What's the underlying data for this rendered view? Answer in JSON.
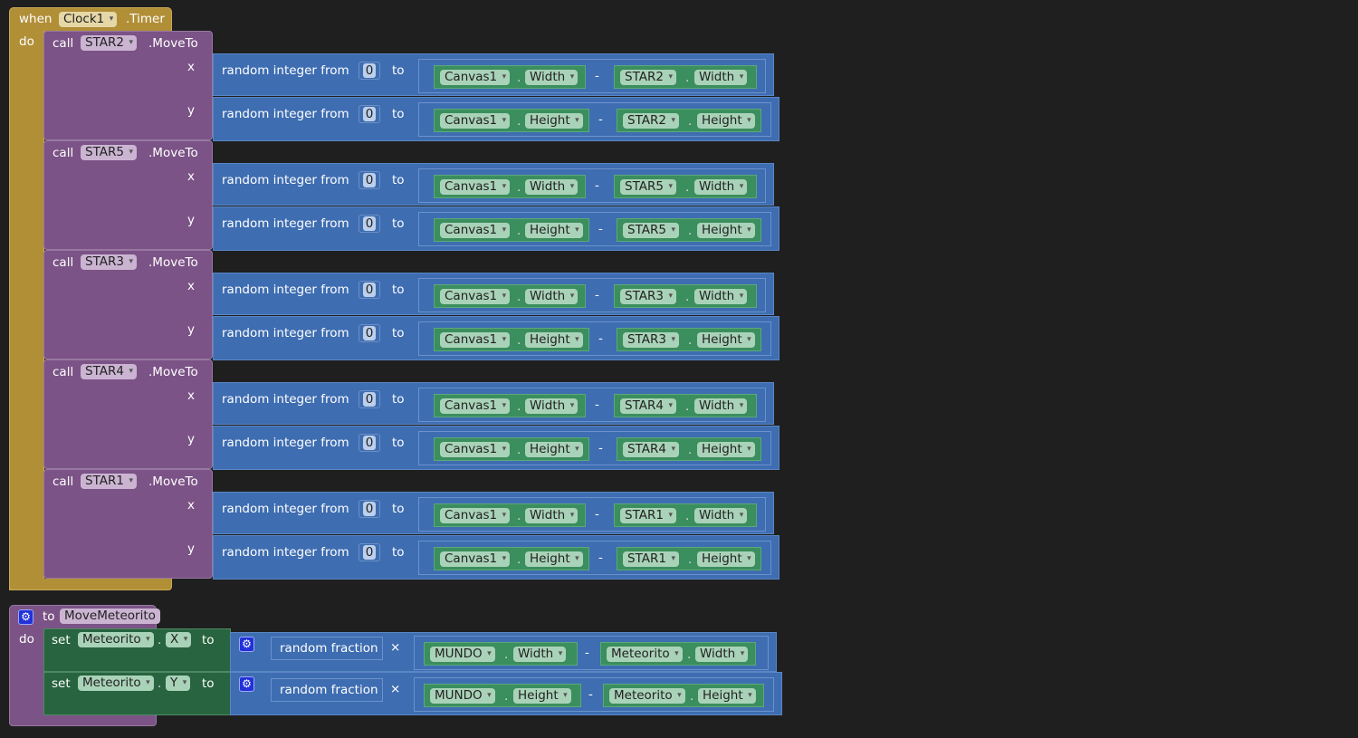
{
  "event": {
    "when": "when",
    "component": "Clock1",
    "event": ".Timer",
    "do": "do"
  },
  "calls": [
    {
      "call": "call",
      "star": "STAR2",
      "method": ".MoveTo"
    },
    {
      "call": "call",
      "star": "STAR5",
      "method": ".MoveTo"
    },
    {
      "call": "call",
      "star": "STAR3",
      "method": ".MoveTo"
    },
    {
      "call": "call",
      "star": "STAR4",
      "method": ".MoveTo"
    },
    {
      "call": "call",
      "star": "STAR1",
      "method": ".MoveTo"
    }
  ],
  "args": {
    "x": "x",
    "y": "y",
    "random_int": "random integer from",
    "from_value": "0",
    "to": "to",
    "canvas": "Canvas1",
    "width": "Width",
    "height": "Height",
    "minus": "-"
  },
  "procedure": {
    "to": "to",
    "name": "MoveMeteorito",
    "do": "do",
    "sets": [
      {
        "set": "set",
        "component": "Meteorito",
        "prop": "X",
        "to": "to",
        "random": "random fraction",
        "times": "×",
        "world": "MUNDO",
        "dim": "Width",
        "obj": "Meteorito"
      },
      {
        "set": "set",
        "component": "Meteorito",
        "prop": "Y",
        "to": "to",
        "random": "random fraction",
        "times": "×",
        "world": "MUNDO",
        "dim": "Height",
        "obj": "Meteorito"
      }
    ]
  },
  "colors": {
    "event": "#b18f37",
    "procedure": "#7b5386",
    "math": "#3e6db1",
    "component": "#3b8e5d",
    "setter": "#27643f"
  }
}
